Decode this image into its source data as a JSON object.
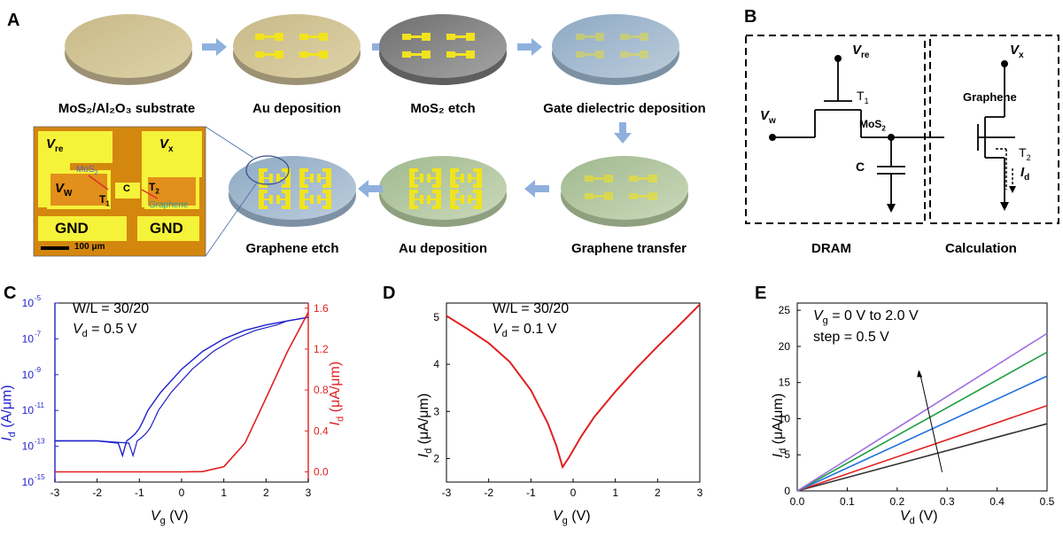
{
  "panels": {
    "A": {
      "letter": "A",
      "steps": [
        "MoS₂/Al₂O₃ substrate",
        "Au deposition",
        "MoS₂ etch",
        "Gate dielectric deposition",
        "Graphene transfer",
        "Au deposition",
        "Graphene etch"
      ],
      "micrograph": {
        "labels": {
          "vre": "V",
          "vre_sub": "re",
          "vx": "V",
          "vx_sub": "x",
          "vw": "V",
          "vw_sub": "W",
          "c": "C",
          "t1": "T",
          "t1_sub": "1",
          "t2": "T",
          "t2_sub": "2",
          "gnd": "GND",
          "mos2": "MoS",
          "mos2_sub": "2",
          "graphene": "Graphene",
          "scale": "100 μm"
        }
      },
      "colors": {
        "arrow": "#8fb0dd",
        "substrate": "#d9cc9c",
        "gray_disk": "#8f8f8f",
        "blue_disk": "#a9bfd4",
        "green_disk": "#bccdaa",
        "gold": "#f3e52a"
      }
    },
    "B": {
      "letter": "B",
      "labels": {
        "vre": "V",
        "vre_sub": "re",
        "vx": "V",
        "vx_sub": "x",
        "vw": "V",
        "vw_sub": "w",
        "t1": "T",
        "t1_sub": "1",
        "t2": "T",
        "t2_sub": "2",
        "mos2": "MoS",
        "mos2_sub": "2",
        "c": "C",
        "graphene": "Graphene",
        "id": "I",
        "id_sub": "d",
        "dram": "DRAM",
        "calc": "Calculation"
      }
    },
    "C": {
      "letter": "C",
      "annotations": [
        "W/L = 30/20",
        "V",
        "d",
        " = 0.5 V"
      ],
      "xlabel": "V",
      "xlabel_sub": "g",
      "xlabel_unit": " (V)",
      "ylabel_left": "I",
      "ylabel_left_sub": "d",
      "ylabel_left_unit": " (A/μm)",
      "ylabel_right": "I",
      "ylabel_right_sub": "d",
      "ylabel_right_unit": " (μA/μm)",
      "xticks": [
        "-3",
        "-2",
        "-1",
        "0",
        "1",
        "2",
        "3"
      ],
      "yticks_left": [
        "10",
        "10",
        "10",
        "10",
        "10",
        "10"
      ],
      "yticks_left_exp": [
        "-15",
        "-13",
        "-11",
        "-9",
        "-7",
        "-5"
      ],
      "yticks_right": [
        "0.0",
        "0.4",
        "0.8",
        "1.2",
        "1.6"
      ],
      "colors": {
        "log": "#1f1fcc",
        "linear": "#e02020"
      }
    },
    "D": {
      "letter": "D",
      "annotations": [
        "W/L = 30/20",
        "V",
        "d",
        " = 0.1 V"
      ],
      "xlabel": "V",
      "xlabel_sub": "g",
      "xlabel_unit": " (V)",
      "ylabel": "I",
      "ylabel_sub": "d",
      "ylabel_unit": " (μA/μm)",
      "xticks": [
        "-3",
        "-2",
        "-1",
        "0",
        "1",
        "2",
        "3"
      ],
      "yticks": [
        "2",
        "3",
        "4",
        "5"
      ]
    },
    "E": {
      "letter": "E",
      "annotations": [
        "V",
        "g",
        " = 0 V to 2.0 V",
        "step = 0.5 V"
      ],
      "xlabel": "V",
      "xlabel_sub": "d",
      "xlabel_unit": " (V)",
      "ylabel": "I",
      "ylabel_sub": "d",
      "ylabel_unit": " (μA/μm)",
      "xticks": [
        "0.0",
        "0.1",
        "0.2",
        "0.3",
        "0.4",
        "0.5"
      ],
      "yticks": [
        "0",
        "5",
        "10",
        "15",
        "20",
        "25"
      ]
    }
  },
  "chart_data": [
    {
      "type": "line",
      "panel": "C",
      "x": [
        -3,
        -2.5,
        -2,
        -1.5,
        -1.4,
        -1.3,
        -1.2,
        -1.1,
        -1.0,
        -0.9,
        -0.8,
        -0.5,
        0,
        0.5,
        1,
        1.5,
        2,
        2.5,
        3
      ],
      "series": [
        {
          "values": [
            2e-13,
            2e-13,
            2e-13,
            1.5e-13,
            3e-14,
            2e-13,
            3e-13,
            5e-13,
            1e-12,
            3e-12,
            1e-11,
            1e-10,
            2e-09,
            2e-08,
            1e-07,
            3e-07,
            6e-07,
            1e-06,
            1.6e-06
          ]
        },
        {
          "values": [
            0,
            0,
            0,
            0,
            0,
            0,
            0,
            0,
            0,
            0,
            0,
            0,
            0,
            0.002,
            0.05,
            0.28,
            0.72,
            1.17,
            1.56
          ]
        }
      ],
      "xlim": [
        -3,
        3
      ],
      "ylim_left_log": [
        1e-15,
        1e-05
      ],
      "ylim_right": [
        -0.1,
        1.65
      ]
    },
    {
      "type": "line",
      "panel": "D",
      "x": [
        -3,
        -2.5,
        -2,
        -1.5,
        -1,
        -0.6,
        -0.4,
        -0.25,
        -0.1,
        0.2,
        0.5,
        1,
        1.5,
        2,
        2.5,
        3
      ],
      "series": [
        {
          "values": [
            5.03,
            4.75,
            4.45,
            4.05,
            3.45,
            2.75,
            2.28,
            1.82,
            2.02,
            2.48,
            2.88,
            3.42,
            3.92,
            4.38,
            4.82,
            5.27
          ]
        }
      ],
      "xlim": [
        -3,
        3
      ],
      "ylim": [
        1.5,
        5.3
      ]
    },
    {
      "type": "line",
      "panel": "E",
      "x": [
        0,
        0.5
      ],
      "series": [
        {
          "values": [
            0,
            9.3
          ],
          "color": "#333333"
        },
        {
          "values": [
            0,
            11.8
          ],
          "color": "#e02020"
        },
        {
          "values": [
            0,
            15.9
          ],
          "color": "#2070e0"
        },
        {
          "values": [
            0,
            19.2
          ],
          "color": "#20a040"
        },
        {
          "values": [
            0,
            21.8
          ],
          "color": "#a070e0"
        }
      ],
      "xlim": [
        0,
        0.5
      ],
      "ylim": [
        0,
        26
      ]
    }
  ]
}
